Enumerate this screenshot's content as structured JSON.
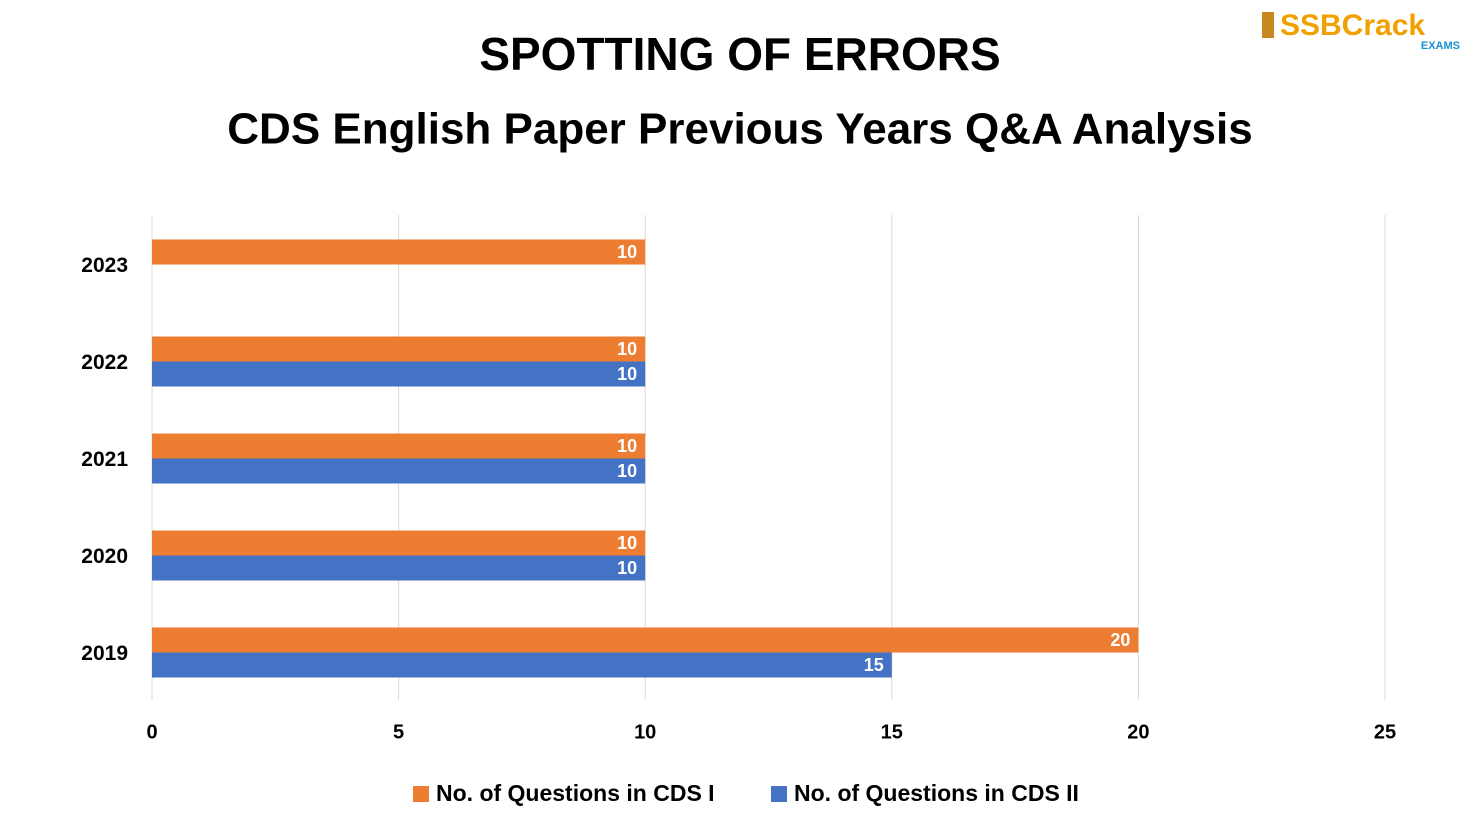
{
  "logo": {
    "name": "SSBCrack",
    "sub": "EXAMS"
  },
  "chart_data": {
    "type": "barh",
    "title": "SPOTTING OF ERRORS",
    "subtitle": "CDS English Paper Previous Years Q&A Analysis",
    "categories": [
      "2019",
      "2020",
      "2021",
      "2022",
      "2023"
    ],
    "series": [
      {
        "name": "No. of Questions in CDS I",
        "color": "#ed7d31",
        "values": [
          20,
          10,
          10,
          10,
          10
        ]
      },
      {
        "name": "No. of Questions in CDS II",
        "color": "#4472c4",
        "values": [
          15,
          10,
          10,
          10,
          null
        ]
      }
    ],
    "xlim": [
      0,
      25
    ],
    "xticks": [
      0,
      5,
      10,
      15,
      20,
      25
    ],
    "grid": true,
    "legend": "bottom"
  }
}
